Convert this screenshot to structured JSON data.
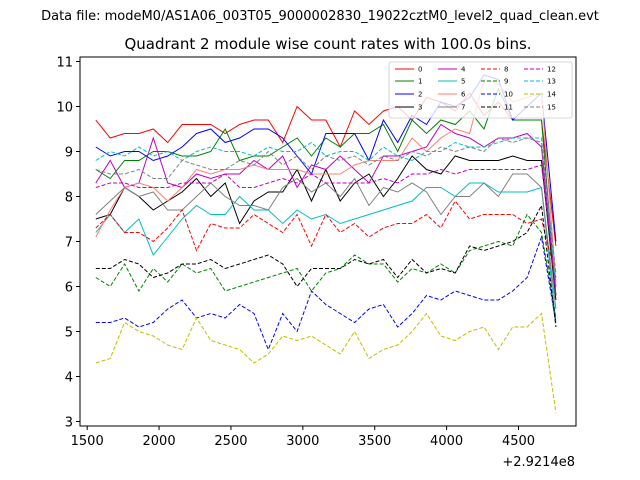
{
  "header": {
    "data_file_label": "Data file: modeM0/AS1A06_003T05_9000002830_19022cztM0_level2_quad_clean.evt"
  },
  "chart_data": {
    "type": "line",
    "title": "Quadrant 2 module wise count rates with 100.0s bins.",
    "xlabel": "",
    "ylabel": "",
    "x_offset_label": "+2.9214e8",
    "xlim": [
      1450,
      4900
    ],
    "ylim": [
      2.9,
      11.1
    ],
    "xticks": [
      1500,
      2000,
      2500,
      3000,
      3500,
      4000,
      4500
    ],
    "yticks": [
      3,
      4,
      5,
      6,
      7,
      8,
      9,
      10,
      11
    ],
    "grid": false,
    "legend_position": "top-right",
    "x": [
      1560,
      1660,
      1760,
      1860,
      1960,
      2060,
      2160,
      2260,
      2360,
      2460,
      2560,
      2660,
      2760,
      2860,
      2960,
      3060,
      3160,
      3260,
      3360,
      3460,
      3560,
      3660,
      3760,
      3860,
      3960,
      4060,
      4160,
      4260,
      4360,
      4460,
      4560,
      4660,
      4760
    ],
    "series": [
      {
        "name": "0",
        "color": "#ff0000",
        "dash": "solid",
        "values": [
          9.7,
          9.3,
          9.4,
          9.4,
          9.5,
          9.2,
          9.6,
          9.6,
          9.6,
          9.4,
          9.6,
          9.7,
          9.7,
          9.2,
          10.0,
          9.7,
          9.7,
          9.1,
          9.9,
          9.6,
          9.9,
          10.0,
          9.7,
          10.2,
          10.1,
          9.9,
          10.3,
          9.8,
          10.1,
          9.7,
          9.7,
          9.7,
          6.9
        ]
      },
      {
        "name": "1",
        "color": "#008000",
        "dash": "solid",
        "values": [
          8.6,
          8.4,
          8.8,
          8.8,
          9.0,
          9.0,
          8.9,
          8.9,
          9.0,
          9.5,
          8.8,
          8.9,
          8.9,
          9.1,
          9.3,
          8.9,
          9.3,
          9.1,
          9.4,
          9.4,
          9.6,
          9.0,
          9.7,
          9.4,
          9.7,
          9.6,
          9.9,
          9.5,
          10.4,
          9.7,
          9.7,
          9.7,
          5.8
        ]
      },
      {
        "name": "2",
        "color": "#0000ff",
        "dash": "solid",
        "values": [
          9.1,
          8.9,
          9.0,
          9.0,
          8.8,
          8.9,
          9.1,
          9.4,
          9.5,
          9.2,
          9.3,
          9.5,
          9.5,
          9.3,
          8.9,
          8.5,
          9.4,
          9.4,
          9.4,
          8.8,
          9.7,
          9.2,
          9.8,
          9.6,
          10.1,
          10.0,
          10.2,
          10.7,
          10.6,
          9.7,
          10.0,
          10.3,
          7.0
        ]
      },
      {
        "name": "3",
        "color": "#000000",
        "dash": "solid",
        "values": [
          7.5,
          7.6,
          8.2,
          8.0,
          7.7,
          7.9,
          8.1,
          8.4,
          8.0,
          8.3,
          7.4,
          7.9,
          8.1,
          8.1,
          8.6,
          7.9,
          8.6,
          7.9,
          8.3,
          8.5,
          8.0,
          8.4,
          8.9,
          8.6,
          8.5,
          8.9,
          8.8,
          8.8,
          8.8,
          8.9,
          8.8,
          8.8,
          5.7
        ]
      },
      {
        "name": "4",
        "color": "#bf00bf",
        "dash": "solid",
        "values": [
          8.3,
          8.8,
          8.2,
          8.3,
          9.3,
          8.3,
          8.2,
          8.5,
          8.4,
          8.5,
          8.5,
          8.8,
          8.6,
          8.9,
          8.2,
          8.7,
          8.6,
          8.9,
          8.6,
          8.3,
          8.9,
          8.9,
          9.0,
          9.1,
          9.6,
          9.4,
          9.3,
          9.1,
          9.3,
          9.3,
          9.4,
          9.1,
          5.8
        ]
      },
      {
        "name": "5",
        "color": "#00bfbf",
        "dash": "solid",
        "values": [
          7.2,
          7.6,
          7.2,
          7.5,
          6.7,
          7.1,
          7.5,
          7.8,
          7.6,
          7.6,
          8.0,
          7.7,
          7.7,
          7.4,
          7.7,
          7.5,
          7.6,
          7.4,
          7.5,
          7.6,
          7.7,
          7.8,
          7.9,
          8.2,
          8.2,
          8.0,
          8.3,
          8.3,
          8.1,
          8.1,
          8.1,
          8.2,
          5.2
        ]
      },
      {
        "name": "6",
        "color": "#fa8072",
        "dash": "solid",
        "values": [
          7.1,
          7.7,
          8.2,
          8.3,
          8.2,
          7.9,
          8.2,
          8.6,
          8.5,
          8.6,
          8.6,
          8.7,
          8.6,
          8.6,
          8.6,
          8.5,
          8.5,
          8.5,
          8.7,
          8.8,
          8.8,
          8.8,
          9.3,
          9.0,
          9.3,
          9.5,
          9.4,
          10.6,
          10.5,
          10.1,
          10.2,
          10.3,
          6.1
        ]
      },
      {
        "name": "7",
        "color": "#808080",
        "dash": "solid",
        "values": [
          7.6,
          7.9,
          8.2,
          8.0,
          8.1,
          7.7,
          7.7,
          8.0,
          8.3,
          8.0,
          7.8,
          7.8,
          7.7,
          8.2,
          8.4,
          8.1,
          8.3,
          8.0,
          8.4,
          7.8,
          8.2,
          8.1,
          8.3,
          8.1,
          7.6,
          8.0,
          8.0,
          8.3,
          8.0,
          8.5,
          8.5,
          8.2,
          5.5
        ]
      },
      {
        "name": "8",
        "color": "#ff0000",
        "dash": "dashed",
        "values": [
          7.3,
          7.6,
          7.2,
          7.2,
          7.0,
          7.3,
          7.7,
          6.8,
          7.4,
          7.3,
          7.3,
          7.6,
          7.4,
          7.2,
          7.6,
          6.9,
          7.6,
          7.2,
          7.4,
          7.1,
          7.3,
          7.4,
          7.4,
          7.6,
          7.3,
          7.9,
          7.5,
          7.6,
          7.6,
          7.6,
          7.4,
          7.5,
          6.2
        ]
      },
      {
        "name": "9",
        "color": "#008000",
        "dash": "dashed",
        "values": [
          6.2,
          6.0,
          6.5,
          5.9,
          6.4,
          6.1,
          6.5,
          6.3,
          6.4,
          5.9,
          6.0,
          6.1,
          6.2,
          6.3,
          6.4,
          5.9,
          6.3,
          6.4,
          6.7,
          6.5,
          6.5,
          6.1,
          6.4,
          6.3,
          6.5,
          6.3,
          6.8,
          6.9,
          7.0,
          6.9,
          7.6,
          7.2,
          5.3
        ]
      },
      {
        "name": "10",
        "color": "#0000ff",
        "dash": "dashed",
        "values": [
          5.2,
          5.2,
          5.3,
          5.1,
          5.2,
          5.5,
          5.7,
          5.3,
          5.4,
          5.3,
          5.6,
          5.4,
          4.6,
          5.4,
          5.0,
          5.9,
          5.6,
          5.4,
          5.2,
          5.5,
          5.6,
          5.1,
          5.4,
          5.8,
          5.7,
          5.9,
          5.8,
          5.7,
          5.7,
          5.9,
          6.2,
          7.1,
          5.2
        ]
      },
      {
        "name": "11",
        "color": "#000000",
        "dash": "dashed",
        "values": [
          6.4,
          6.4,
          6.6,
          6.5,
          6.2,
          6.3,
          6.5,
          6.5,
          6.6,
          6.4,
          6.5,
          6.6,
          6.7,
          6.5,
          6.0,
          6.4,
          6.4,
          6.4,
          6.6,
          6.5,
          6.6,
          6.2,
          6.6,
          6.3,
          6.4,
          6.3,
          6.9,
          6.8,
          6.9,
          7.0,
          7.2,
          7.8,
          5.1
        ]
      },
      {
        "name": "12",
        "color": "#bf00bf",
        "dash": "dashed",
        "values": [
          8.2,
          8.3,
          8.3,
          8.2,
          8.2,
          8.2,
          8.3,
          8.3,
          8.3,
          8.5,
          8.2,
          8.2,
          8.3,
          8.4,
          8.3,
          8.5,
          8.3,
          8.3,
          8.3,
          8.3,
          8.4,
          8.3,
          8.5,
          8.5,
          8.6,
          8.5,
          8.6,
          8.6,
          8.6,
          8.6,
          8.6,
          8.7,
          6.0
        ]
      },
      {
        "name": "13",
        "color": "#00bfbf",
        "dash": "dashed",
        "values": [
          8.8,
          9.0,
          8.9,
          9.1,
          8.9,
          9.0,
          8.8,
          9.0,
          9.1,
          9.0,
          9.0,
          8.9,
          9.1,
          9.0,
          9.0,
          9.2,
          8.9,
          9.0,
          9.0,
          8.8,
          9.1,
          8.9,
          8.8,
          9.0,
          9.0,
          9.2,
          9.1,
          9.1,
          9.2,
          9.3,
          9.3,
          9.3,
          6.0
        ]
      },
      {
        "name": "14",
        "color": "#bfbf00",
        "dash": "dashed",
        "values": [
          4.3,
          4.4,
          5.2,
          5.0,
          4.9,
          4.7,
          4.6,
          5.3,
          4.8,
          4.7,
          4.6,
          4.3,
          4.5,
          4.9,
          4.8,
          4.9,
          4.7,
          4.5,
          5.0,
          4.4,
          4.6,
          4.7,
          5.0,
          5.4,
          4.9,
          4.8,
          5.0,
          5.1,
          4.6,
          5.1,
          5.1,
          5.4,
          3.2
        ]
      },
      {
        "name": "15",
        "color": "#808080",
        "dash": "dashed",
        "values": [
          8.6,
          8.5,
          8.5,
          8.6,
          8.4,
          8.4,
          8.8,
          8.7,
          8.6,
          8.6,
          8.8,
          8.7,
          9.0,
          8.7,
          8.9,
          8.6,
          8.9,
          8.8,
          8.9,
          8.7,
          8.9,
          8.8,
          9.0,
          8.9,
          9.1,
          9.0,
          9.1,
          9.0,
          9.3,
          9.2,
          9.3,
          9.2,
          6.3
        ]
      }
    ]
  }
}
